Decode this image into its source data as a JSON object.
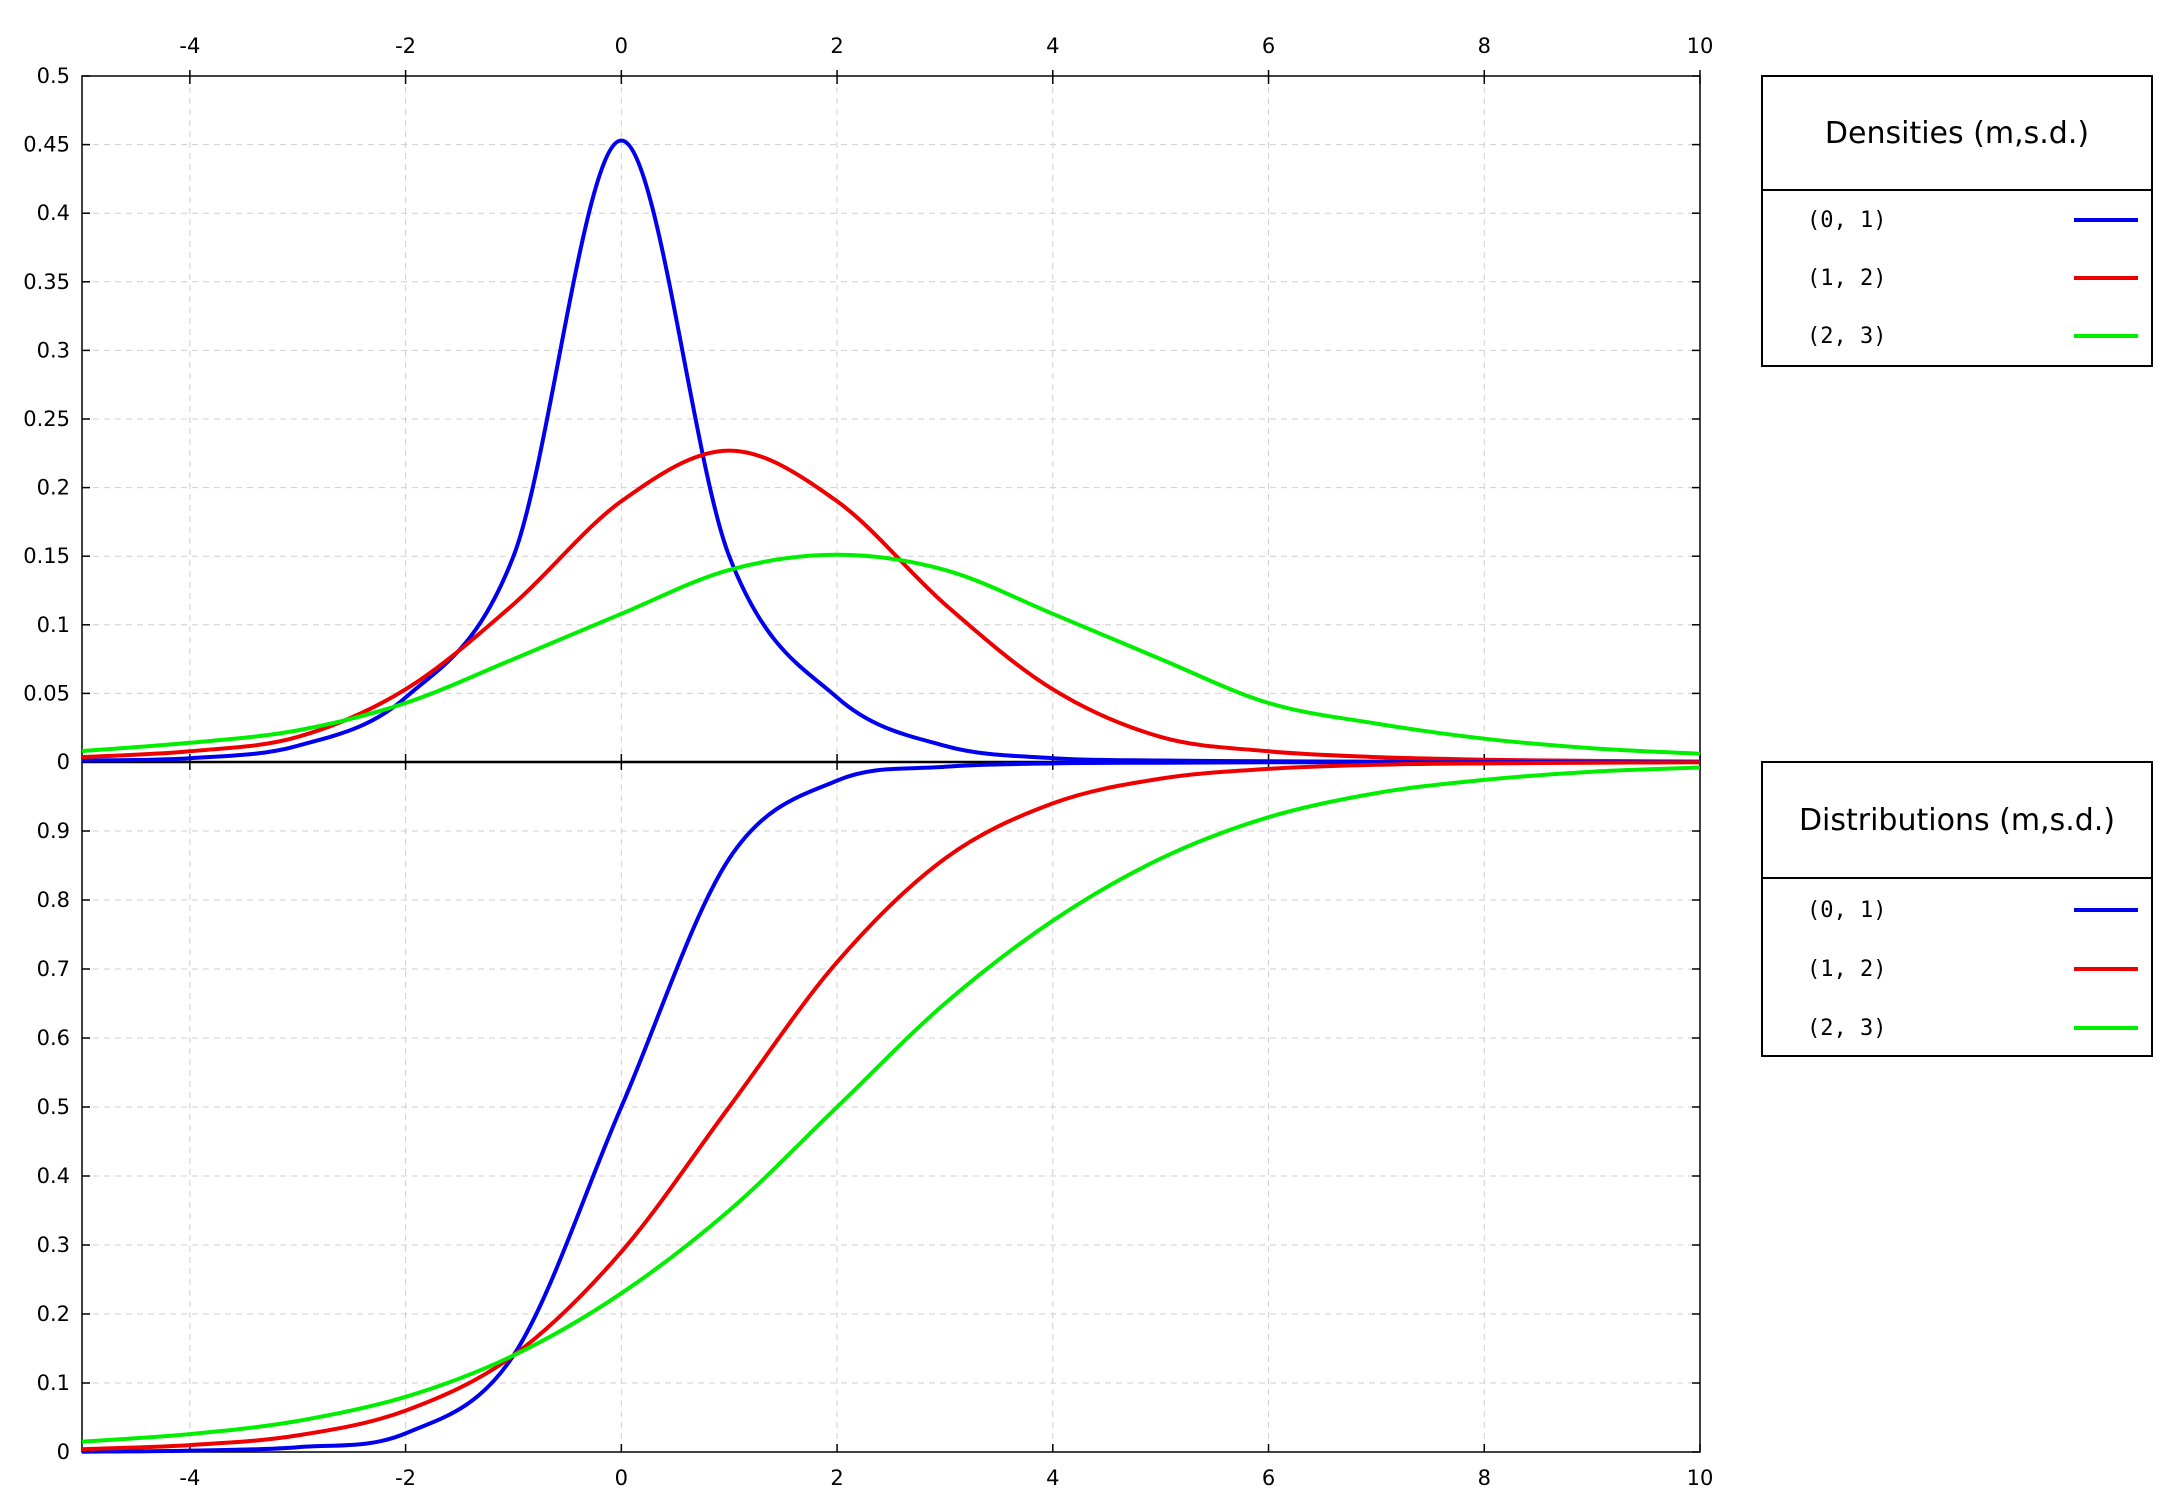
{
  "chart_data": [
    {
      "type": "line",
      "panel": "densities",
      "xlim": [
        -5,
        10
      ],
      "ylim": [
        0,
        0.5
      ],
      "x_ticks": [
        "-4",
        "-2",
        "0",
        "2",
        "4",
        "6",
        "8",
        "10"
      ],
      "y_ticks": [
        "0",
        "0.05",
        "0.1",
        "0.15",
        "0.2",
        "0.25",
        "0.3",
        "0.35",
        "0.4",
        "0.45",
        "0.5"
      ],
      "grid": true,
      "legend": {
        "title": "Densities  (m,s.d.)",
        "placement": "right-top",
        "entries": [
          "(0, 1)",
          "(1, 2)",
          "(2, 3)"
        ]
      },
      "series": [
        {
          "name": "(0, 1)",
          "color": "#0000ee",
          "x": [
            -5,
            -4,
            -3,
            -2,
            -1,
            0,
            1,
            2,
            3,
            4,
            5,
            6,
            7,
            8,
            9,
            10
          ],
          "values": [
            0.0011,
            0.0028,
            0.0118,
            0.047,
            0.15,
            0.453,
            0.15,
            0.047,
            0.0118,
            0.0028,
            0.0011,
            0.0005,
            0.0003,
            0.0002,
            0.0001,
            0.0001
          ]
        },
        {
          "name": "(1, 2)",
          "color": "#ee0000",
          "x": [
            -5,
            -4,
            -3,
            -2,
            -1,
            0,
            1,
            2,
            3,
            4,
            5,
            6,
            7,
            8,
            9,
            10
          ],
          "values": [
            0.0036,
            0.0078,
            0.0183,
            0.053,
            0.115,
            0.19,
            0.227,
            0.19,
            0.115,
            0.053,
            0.0183,
            0.0078,
            0.0036,
            0.0017,
            0.0008,
            0.0004
          ]
        },
        {
          "name": "(2, 3)",
          "color": "#00ee00",
          "x": [
            -5,
            -4,
            -3,
            -2,
            -1,
            0,
            1,
            2,
            3,
            4,
            5,
            6,
            7,
            8,
            9,
            10
          ],
          "values": [
            0.008,
            0.014,
            0.023,
            0.043,
            0.075,
            0.108,
            0.14,
            0.151,
            0.14,
            0.108,
            0.075,
            0.043,
            0.028,
            0.017,
            0.01,
            0.006
          ]
        }
      ]
    },
    {
      "type": "line",
      "panel": "distributions",
      "xlim": [
        -5,
        10
      ],
      "ylim": [
        0,
        1
      ],
      "x_ticks": [
        "-4",
        "-2",
        "0",
        "2",
        "4",
        "6",
        "8",
        "10"
      ],
      "y_ticks": [
        "0",
        "0.1",
        "0.2",
        "0.3",
        "0.4",
        "0.5",
        "0.6",
        "0.7",
        "0.8",
        "0.9"
      ],
      "grid": true,
      "legend": {
        "title": "Distributions  (m,s.d.)",
        "placement": "right-top",
        "entries": [
          "(0, 1)",
          "(1, 2)",
          "(2, 3)"
        ]
      },
      "series": [
        {
          "name": "(0, 1)",
          "color": "#0000ee",
          "x": [
            -5,
            -4,
            -3,
            -2,
            -1,
            0,
            1,
            2,
            3,
            4,
            5,
            6,
            7,
            8,
            9,
            10
          ],
          "values": [
            0.0004,
            0.002,
            0.007,
            0.027,
            0.14,
            0.5,
            0.86,
            0.973,
            0.993,
            0.998,
            0.999,
            0.9995,
            0.9997,
            0.9998,
            0.9999,
            1.0
          ]
        },
        {
          "name": "(1, 2)",
          "color": "#ee0000",
          "x": [
            -5,
            -4,
            -3,
            -2,
            -1,
            0,
            1,
            2,
            3,
            4,
            5,
            6,
            7,
            8,
            9,
            10
          ],
          "values": [
            0.004,
            0.01,
            0.024,
            0.06,
            0.14,
            0.29,
            0.5,
            0.71,
            0.86,
            0.94,
            0.976,
            0.99,
            0.996,
            0.998,
            0.999,
            0.9995
          ]
        },
        {
          "name": "(2, 3)",
          "color": "#00ee00",
          "x": [
            -5,
            -4,
            -3,
            -2,
            -1,
            0,
            1,
            2,
            3,
            4,
            5,
            6,
            7,
            8,
            9,
            10
          ],
          "values": [
            0.015,
            0.026,
            0.045,
            0.08,
            0.14,
            0.23,
            0.35,
            0.5,
            0.65,
            0.77,
            0.86,
            0.92,
            0.955,
            0.974,
            0.986,
            0.992
          ]
        }
      ]
    }
  ]
}
